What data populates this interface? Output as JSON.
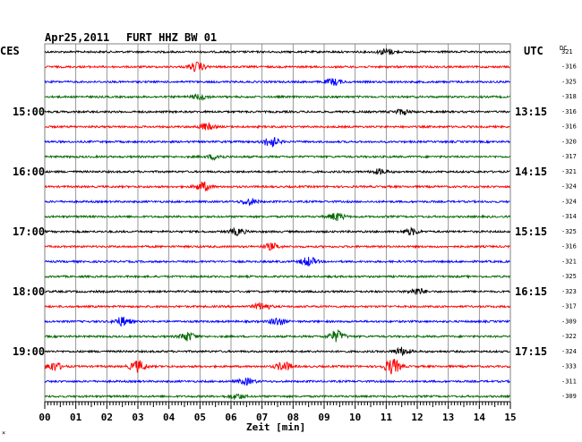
{
  "header": {
    "date": "Apr25,2011",
    "station": "FURT HHZ BW 01"
  },
  "left_axis_title": "CES",
  "right_axis_title": "UTC",
  "dc_label": "DC",
  "footer_mark": "×",
  "colors": {
    "trace_cycle": [
      "#000000",
      "#ff0000",
      "#0000ff",
      "#006600"
    ],
    "grid": "#808080",
    "background": "#ffffff"
  },
  "chart_data": {
    "type": "line",
    "title": "Apr25,2011   FURT HHZ BW 01",
    "xlabel": "Zeit [min]",
    "xlim": [
      0,
      15
    ],
    "x_tick_labels": [
      "00",
      "01",
      "02",
      "03",
      "04",
      "05",
      "06",
      "07",
      "08",
      "09",
      "10",
      "11",
      "12",
      "13",
      "14",
      "15"
    ],
    "num_traces": 24,
    "left_hour_labels": [
      {
        "row": 4,
        "text": "15:00"
      },
      {
        "row": 8,
        "text": "16:00"
      },
      {
        "row": 12,
        "text": "17:00"
      },
      {
        "row": 16,
        "text": "18:00"
      },
      {
        "row": 20,
        "text": "19:00"
      }
    ],
    "right_hour_labels": [
      {
        "row": 4,
        "text": "13:15"
      },
      {
        "row": 8,
        "text": "14:15"
      },
      {
        "row": 12,
        "text": "15:15"
      },
      {
        "row": 16,
        "text": "16:15"
      },
      {
        "row": 20,
        "text": "17:15"
      }
    ],
    "dc_offsets": [
      "321",
      "-316",
      "-325",
      "-318",
      "-316",
      "-316",
      "-320",
      "-317",
      "-321",
      "-324",
      "-324",
      "-314",
      "-325",
      "-316",
      "-321",
      "-325",
      "-323",
      "-317",
      "-309",
      "-322",
      "-324",
      "-333",
      "-311",
      "-309"
    ],
    "bursts": [
      {
        "row": 0,
        "x": 11.0,
        "amp": 0.5
      },
      {
        "row": 1,
        "x": 4.9,
        "amp": 0.7
      },
      {
        "row": 2,
        "x": 9.3,
        "amp": 0.5
      },
      {
        "row": 3,
        "x": 5.0,
        "amp": 0.4
      },
      {
        "row": 4,
        "x": 11.5,
        "amp": 0.4
      },
      {
        "row": 5,
        "x": 5.2,
        "amp": 0.5
      },
      {
        "row": 6,
        "x": 7.3,
        "amp": 0.8
      },
      {
        "row": 7,
        "x": 5.5,
        "amp": 0.4
      },
      {
        "row": 8,
        "x": 10.8,
        "amp": 0.4
      },
      {
        "row": 9,
        "x": 5.1,
        "amp": 0.7
      },
      {
        "row": 10,
        "x": 6.6,
        "amp": 0.5
      },
      {
        "row": 11,
        "x": 9.4,
        "amp": 0.6
      },
      {
        "row": 12,
        "x": 6.2,
        "amp": 0.5
      },
      {
        "row": 12,
        "x": 11.8,
        "amp": 0.5
      },
      {
        "row": 13,
        "x": 7.3,
        "amp": 0.5
      },
      {
        "row": 14,
        "x": 8.5,
        "amp": 0.7
      },
      {
        "row": 16,
        "x": 12.0,
        "amp": 0.5
      },
      {
        "row": 17,
        "x": 7.0,
        "amp": 0.6
      },
      {
        "row": 18,
        "x": 2.5,
        "amp": 0.7
      },
      {
        "row": 18,
        "x": 7.5,
        "amp": 0.6
      },
      {
        "row": 19,
        "x": 4.6,
        "amp": 0.7
      },
      {
        "row": 19,
        "x": 9.4,
        "amp": 0.9
      },
      {
        "row": 20,
        "x": 11.5,
        "amp": 0.6
      },
      {
        "row": 21,
        "x": 0.3,
        "amp": 0.7
      },
      {
        "row": 21,
        "x": 3.0,
        "amp": 0.9
      },
      {
        "row": 21,
        "x": 7.7,
        "amp": 0.7
      },
      {
        "row": 21,
        "x": 11.2,
        "amp": 1.2
      },
      {
        "row": 22,
        "x": 6.5,
        "amp": 0.5
      },
      {
        "row": 23,
        "x": 6.2,
        "amp": 0.4
      }
    ]
  }
}
